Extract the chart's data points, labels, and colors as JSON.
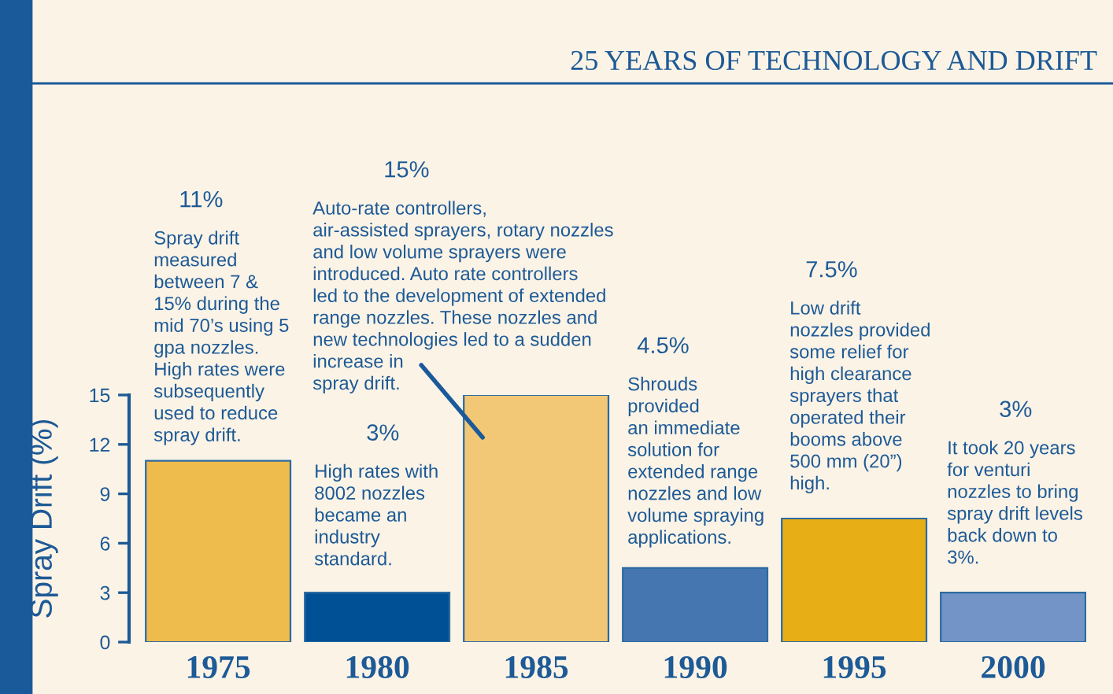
{
  "chart_data": {
    "type": "bar",
    "title": "25 YEARS OF TECHNOLOGY AND DRIFT",
    "ylabel": "Spray Drift (%)",
    "categories": [
      "1975",
      "1980",
      "1985",
      "1990",
      "1995",
      "2000"
    ],
    "values": [
      11,
      3,
      15,
      4.5,
      7.5,
      3
    ],
    "colors": [
      "#eebb4d",
      "#005096",
      "#f2c877",
      "#4676b0",
      "#e8ae15",
      "#7394c6"
    ],
    "ylim": [
      0,
      15
    ],
    "yticks": [
      0,
      3,
      6,
      9,
      12,
      15
    ],
    "grid": false,
    "annotations": [
      "11%",
      "Spray drift\nmeasured\nbetween 7 &\n15% during the\nmid 70’s using 5\ngpa nozzles.\nHigh rates were\nsubsequently\nused to reduce\nspray drift.",
      "3%",
      "High rates with\n8002 nozzles\nbecame an\nindustry\nstandard.",
      "15%",
      "Auto-rate controllers,\nair-assisted sprayers, rotary nozzles\nand low volume sprayers were\nintroduced. Auto rate controllers\nled to the development of extended\nrange nozzles. These nozzles and\nnew technologies led to a sudden\nincrease in\nspray drift.",
      "4.5%",
      "Shrouds\nprovided\nan immediate\nsolution for\nextended range\nnozzles and low\nvolume spraying\napplications.",
      "7.5%",
      "Low drift\nnozzles provided\nsome relief for\nhigh clearance\nsprayers that\noperated their\nbooms above\n500 mm (20”)\nhigh.",
      "3%",
      "It took 20 years\nfor venturi\nnozzles to bring\nspray drift levels\nback down to\n3%."
    ]
  }
}
